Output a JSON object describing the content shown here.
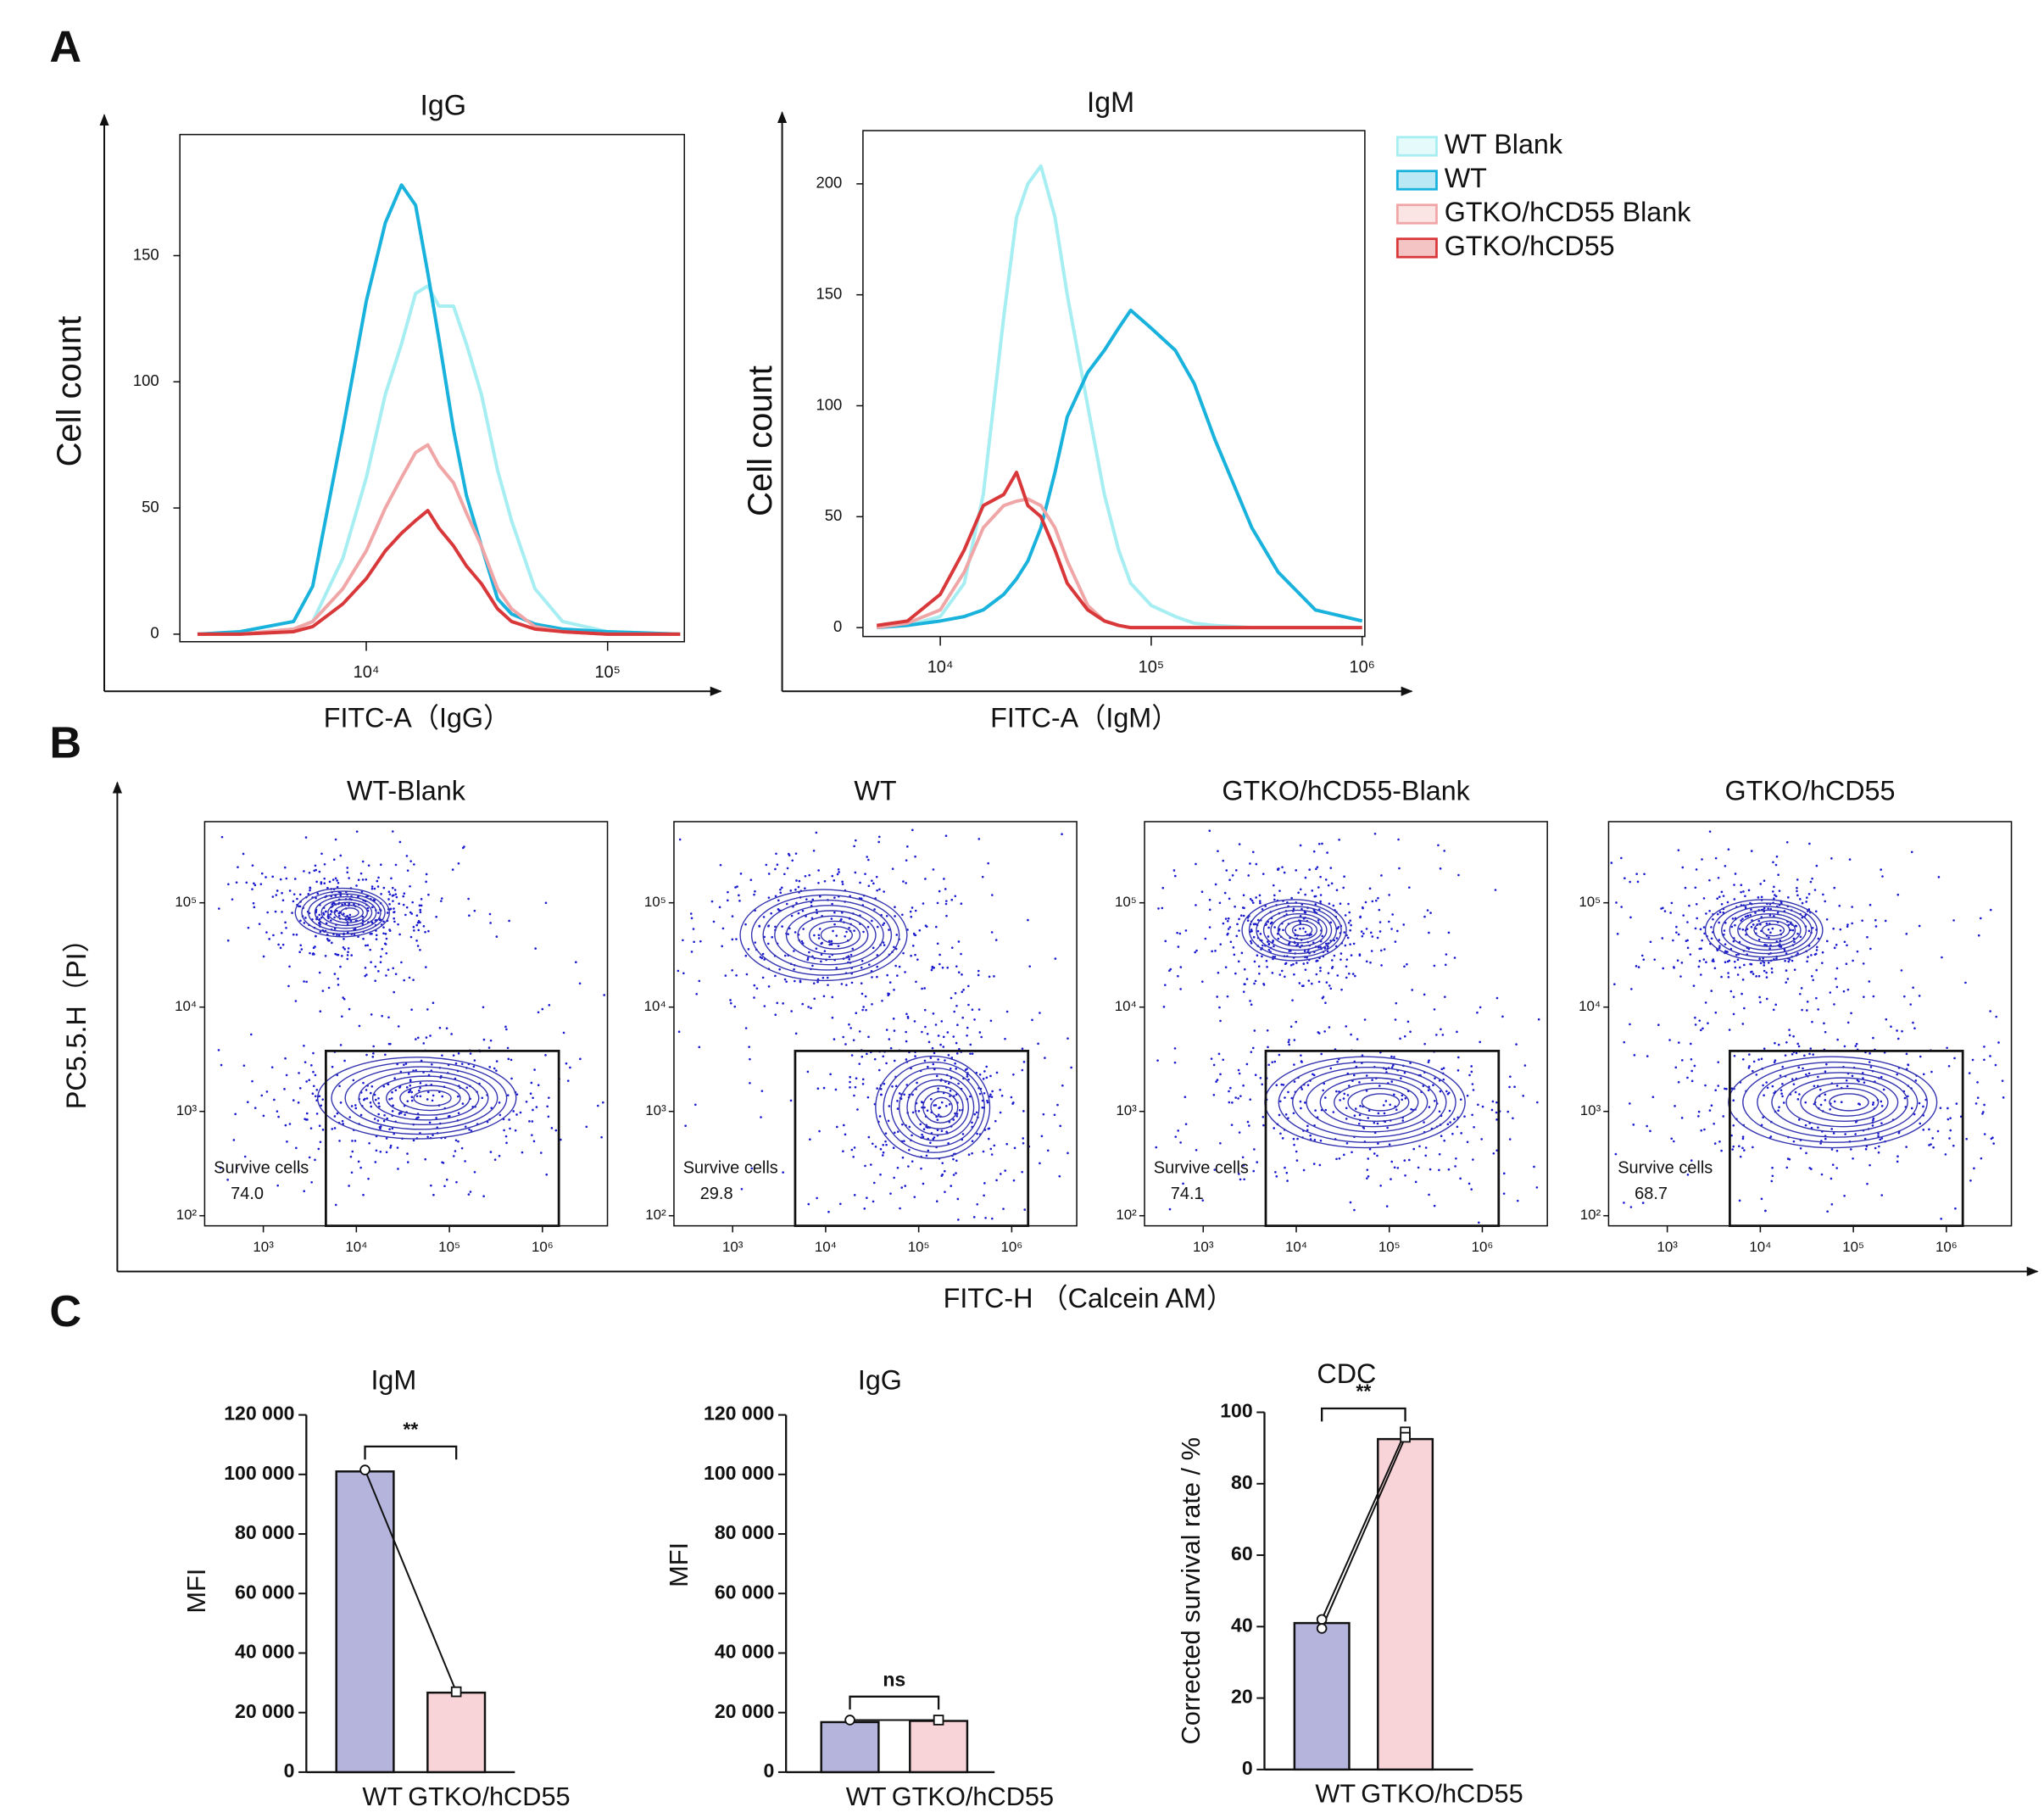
{
  "panel_labels": [
    "A",
    "B",
    "C"
  ],
  "chart_data": [
    {
      "type": "line",
      "title": "IgG",
      "xlabel": "FITC-A（IgG）",
      "ylabel": "Cell count",
      "xscale": "log",
      "xlim": [
        1690,
        208000
      ],
      "xticks": [
        {
          "value": 10000,
          "label": "10⁴"
        },
        {
          "value": 100000,
          "label": "10⁵"
        }
      ],
      "ylim": [
        -3,
        198
      ],
      "yticks": [
        0,
        50,
        100,
        150
      ],
      "x": [
        2000,
        3000,
        5000,
        6000,
        8000,
        10000,
        12000,
        14000,
        16000,
        18000,
        20000,
        23000,
        26000,
        30000,
        35000,
        40000,
        50000,
        65000,
        100000,
        200000
      ],
      "series": [
        {
          "color": "#a6eef2",
          "values": [
            0,
            0,
            2,
            5,
            30,
            62,
            95,
            115,
            135,
            138,
            130,
            130,
            115,
            95,
            65,
            45,
            18,
            5,
            1,
            0
          ]
        },
        {
          "color": "#19b2dc",
          "values": [
            0,
            1,
            5,
            19,
            81,
            132,
            163,
            178,
            170,
            143,
            117,
            81,
            55,
            35,
            14,
            8,
            4,
            2,
            1,
            0
          ]
        },
        {
          "color": "#f0a6a6",
          "values": [
            0,
            0,
            2,
            5,
            18,
            33,
            50,
            62,
            72,
            75,
            67,
            60,
            48,
            35,
            18,
            10,
            3,
            1,
            0,
            0
          ]
        },
        {
          "color": "#d9383a",
          "values": [
            0,
            0,
            1,
            3,
            12,
            22,
            33,
            40,
            45,
            49,
            42,
            35,
            27,
            20,
            10,
            5,
            2,
            1,
            0,
            0
          ]
        }
      ]
    },
    {
      "type": "line",
      "title": "IgM",
      "xlabel": "FITC-A（IgM）",
      "ylabel": "Cell count",
      "xscale": "log",
      "legend": "right",
      "xlim": [
        4300,
        1030000
      ],
      "xticks": [
        {
          "value": 10000,
          "label": "10⁴"
        },
        {
          "value": 100000,
          "label": "10⁵"
        },
        {
          "value": 1000000,
          "label": "10⁶"
        }
      ],
      "ylim": [
        -4,
        224
      ],
      "yticks": [
        0,
        50,
        100,
        150,
        200
      ],
      "x": [
        5000,
        7000,
        10000,
        13000,
        16000,
        20000,
        23000,
        26000,
        30000,
        35000,
        40000,
        50000,
        60000,
        70000,
        80000,
        100000,
        130000,
        160000,
        200000,
        300000,
        400000,
        600000,
        1000000
      ],
      "series": [
        {
          "name": "WT Blank",
          "color": "#a6eef2",
          "values": [
            0,
            1,
            5,
            20,
            60,
            140,
            185,
            200,
            208,
            185,
            150,
            100,
            60,
            35,
            20,
            10,
            5,
            2,
            1,
            0,
            0,
            0,
            0
          ]
        },
        {
          "name": "WT",
          "color": "#19b2dc",
          "values": [
            0,
            1,
            3,
            5,
            8,
            15,
            22,
            30,
            45,
            70,
            95,
            115,
            125,
            135,
            143,
            135,
            125,
            110,
            85,
            45,
            25,
            8,
            3
          ]
        },
        {
          "name": "GTKO/hCD55 Blank",
          "color": "#f0a6a6",
          "values": [
            0,
            2,
            8,
            25,
            45,
            55,
            57,
            58,
            55,
            45,
            30,
            10,
            3,
            1,
            0,
            0,
            0,
            0,
            0,
            0,
            0,
            0,
            0
          ]
        },
        {
          "name": "GTKO/hCD55",
          "color": "#d9383a",
          "values": [
            1,
            3,
            15,
            35,
            55,
            60,
            70,
            55,
            50,
            35,
            20,
            8,
            3,
            1,
            0,
            0,
            0,
            0,
            0,
            0,
            0,
            0,
            0
          ]
        }
      ]
    },
    {
      "type": "flow",
      "xlabel": "FITC-H （Calcein AM）",
      "ylabel": "PC5.5.H（PI）",
      "xscale": "log",
      "yscale": "log",
      "color": "#1a1ad0",
      "xlim": [
        234,
        5000000
      ],
      "xticks": [
        {
          "value": 1000,
          "label": "10³"
        },
        {
          "value": 10000,
          "label": "10⁴"
        },
        {
          "value": 100000,
          "label": "10⁵"
        },
        {
          "value": 1000000,
          "label": "10⁶"
        }
      ],
      "ylim": [
        80,
        600000
      ],
      "yticks": [
        {
          "value": 100,
          "label": "10²"
        },
        {
          "value": 1000,
          "label": "10³"
        },
        {
          "value": 10000,
          "label": "10⁴"
        },
        {
          "value": 100000,
          "label": "10⁵"
        }
      ],
      "panels": [
        {
          "title": "WT-Blank",
          "populations": [
            {
              "x_range": [
                2500,
                20000
              ],
              "y_range": [
                50000,
                130000
              ]
            },
            {
              "x_range": [
                5000,
                400000
              ],
              "y_range": [
                600,
                3000
              ]
            }
          ],
          "gate": {
            "x": [
              4700,
              1500000
            ],
            "y": [
              80,
              3800
            ]
          },
          "gate_label": "Survive cells",
          "value": 74,
          "value_label": "74.0"
        },
        {
          "title": "WT",
          "populations": [
            {
              "x_range": [
                1500,
                60000
              ],
              "y_range": [
                20000,
                120000
              ]
            },
            {
              "x_range": [
                40000,
                500000
              ],
              "y_range": [
                400,
                3000
              ]
            }
          ],
          "gate": {
            "x": [
              4700,
              1500000
            ],
            "y": [
              80,
              3800
            ]
          },
          "gate_label": "Survive cells",
          "value": 29.8
        },
        {
          "title": "GTKO/hCD55-Blank",
          "populations": [
            {
              "x_range": [
                3000,
                30000
              ],
              "y_range": [
                30000,
                100000
              ]
            },
            {
              "x_range": [
                6000,
                500000
              ],
              "y_range": [
                500,
                3000
              ]
            }
          ],
          "gate": {
            "x": [
              4700,
              1500000
            ],
            "y": [
              80,
              3800
            ]
          },
          "gate_label": "Survive cells",
          "value": 74.1
        },
        {
          "title": "GTKO/hCD55",
          "populations": [
            {
              "x_range": [
                3000,
                40000
              ],
              "y_range": [
                30000,
                100000
              ]
            },
            {
              "x_range": [
                6000,
                600000
              ],
              "y_range": [
                500,
                3000
              ]
            }
          ],
          "gate": {
            "x": [
              4700,
              1500000
            ],
            "y": [
              80,
              3800
            ]
          },
          "gate_label": "Survive cells",
          "value": 68.7
        }
      ]
    },
    {
      "type": "bar",
      "title": "IgM",
      "ylabel": "MFI",
      "categories": [
        "WT",
        "GTKO/hCD55"
      ],
      "values": [
        101000,
        26700
      ],
      "colors": [
        "#b4b4dc",
        "#f8d4d8"
      ],
      "points": [
        [
          101500
        ],
        [
          27000
        ]
      ],
      "significance": "**",
      "ylim": [
        0,
        120000
      ],
      "yticks": [
        0,
        {
          "value": 20000,
          "label": "20 000"
        },
        {
          "value": 40000,
          "label": "40 000"
        },
        {
          "value": 60000,
          "label": "60 000"
        },
        {
          "value": 80000,
          "label": "80 000"
        },
        {
          "value": 100000,
          "label": "100 000"
        },
        {
          "value": 120000,
          "label": "120 000"
        }
      ]
    },
    {
      "type": "bar",
      "title": "IgG",
      "ylabel": "MFI",
      "categories": [
        "WT",
        "GTKO/hCD55"
      ],
      "values": [
        16800,
        17200
      ],
      "colors": [
        "#b4b4dc",
        "#f8d4d8"
      ],
      "points": [
        [
          17500
        ],
        [
          17500
        ]
      ],
      "significance": "ns",
      "ylim": [
        0,
        120000
      ],
      "yticks": [
        0,
        {
          "value": 20000,
          "label": "20 000"
        },
        {
          "value": 40000,
          "label": "40 000"
        },
        {
          "value": 60000,
          "label": "60 000"
        },
        {
          "value": 80000,
          "label": "80 000"
        },
        {
          "value": 100000,
          "label": "100 000"
        },
        {
          "value": 120000,
          "label": "120 000"
        }
      ]
    },
    {
      "type": "bar",
      "title": "CDC",
      "ylabel": "Corrected survival rate / %",
      "categories": [
        "WT",
        "GTKO/hCD55"
      ],
      "values": [
        41,
        92.5
      ],
      "colors": [
        "#b4b4dc",
        "#f8d4d8"
      ],
      "points": [
        [
          42,
          39.5
        ],
        [
          94.5,
          93
        ]
      ],
      "significance": "**",
      "ylim": [
        0,
        100
      ],
      "yticks": [
        0,
        20,
        40,
        60,
        80,
        100
      ]
    }
  ]
}
